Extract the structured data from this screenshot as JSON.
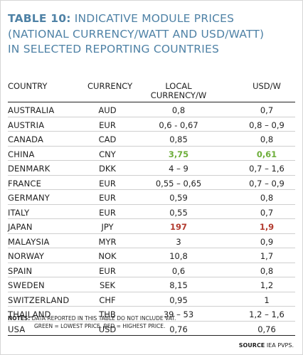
{
  "title": {
    "label": "TABLE 10:",
    "line1_rest": " INDICATIVE MODULE PRICES",
    "line2": "(NATIONAL CURRENCY/WATT AND USD/WATT)",
    "line3": "IN SELECTED REPORTING COUNTRIES"
  },
  "headers": {
    "country": "COUNTRY",
    "currency": "CURRENCY",
    "local_line1": "LOCAL",
    "local_line2": "CURRENCY/W",
    "usd": "USD/W"
  },
  "colors": {
    "title": "#4f82a6",
    "lowest": "#6dae3a",
    "highest": "#b23a2e"
  },
  "rows": [
    {
      "country": "AUSTRALIA",
      "currency": "AUD",
      "local": "0,8",
      "usd": "0,7",
      "mark": ""
    },
    {
      "country": "AUSTRIA",
      "currency": "EUR",
      "local": "0,6 - 0,67",
      "usd": "0,8 – 0,9",
      "mark": ""
    },
    {
      "country": "CANADA",
      "currency": "CAD",
      "local": "0,85",
      "usd": "0,8",
      "mark": ""
    },
    {
      "country": "CHINA",
      "currency": "CNY",
      "local": "3,75",
      "usd": "0,61",
      "mark": "low"
    },
    {
      "country": "DENMARK",
      "currency": "DKK",
      "local": "4 – 9",
      "usd": "0,7 – 1,6",
      "mark": ""
    },
    {
      "country": "FRANCE",
      "currency": "EUR",
      "local": "0,55 – 0,65",
      "usd": "0,7 – 0,9",
      "mark": ""
    },
    {
      "country": "GERMANY",
      "currency": "EUR",
      "local": "0,59",
      "usd": "0,8",
      "mark": ""
    },
    {
      "country": "ITALY",
      "currency": "EUR",
      "local": "0,55",
      "usd": "0,7",
      "mark": ""
    },
    {
      "country": "JAPAN",
      "currency": "JPY",
      "local": "197",
      "usd": "1,9",
      "mark": "high"
    },
    {
      "country": "MALAYSIA",
      "currency": "MYR",
      "local": "3",
      "usd": "0,9",
      "mark": ""
    },
    {
      "country": "NORWAY",
      "currency": "NOK",
      "local": "10,8",
      "usd": "1,7",
      "mark": ""
    },
    {
      "country": "SPAIN",
      "currency": "EUR",
      "local": "0,6",
      "usd": "0,8",
      "mark": ""
    },
    {
      "country": "SWEDEN",
      "currency": "SEK",
      "local": "8,15",
      "usd": "1,2",
      "mark": ""
    },
    {
      "country": "SWITZERLAND",
      "currency": "CHF",
      "local": "0,95",
      "usd": "1",
      "mark": ""
    },
    {
      "country": "THAILAND",
      "currency": "THB",
      "local": "39 – 53",
      "usd": "1,2 – 1,6",
      "mark": ""
    },
    {
      "country": "USA",
      "currency": "USD",
      "local": "0,76",
      "usd": "0,76",
      "mark": ""
    }
  ],
  "notes": {
    "label": "NOTES:",
    "line1": " DATA REPORTED IN THIS TABLE DO NOT INCLUDE VAT.",
    "line2": "GREEN = LOWEST PRICE. RED = HIGHEST PRICE."
  },
  "source": {
    "label": "SOURCE",
    "text": " IEA PVPS."
  }
}
